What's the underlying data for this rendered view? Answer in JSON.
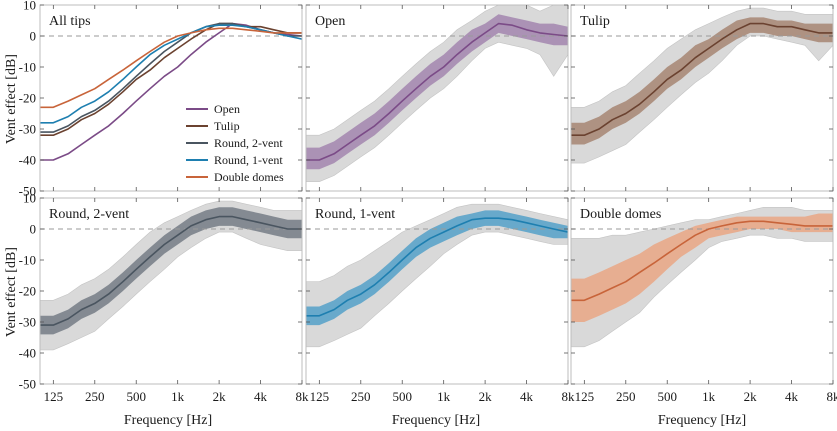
{
  "chart_data": {
    "type": "line",
    "grid": false,
    "legend_location": "lower-right",
    "xlabel": "Frequency [Hz]",
    "ylabel": "Vent effect [dB]",
    "x_scale": "log",
    "xlim": [
      100,
      8000
    ],
    "ylim": [
      -50,
      10
    ],
    "x_ticks": [
      125,
      250,
      500,
      1000,
      2000,
      4000,
      8000
    ],
    "x_tick_labels": [
      "125",
      "250",
      "500",
      "1k",
      "2k",
      "4k",
      "8k"
    ],
    "y_ticks": [
      10,
      0,
      -10,
      -20,
      -30,
      -40,
      -50
    ],
    "y_tick_labels": [
      "10",
      "0",
      "-10",
      "-20",
      "-30",
      "-40",
      "-50"
    ],
    "reference_line": {
      "y": 0,
      "style": "dashed"
    },
    "frequency": [
      100,
      125,
      160,
      200,
      250,
      315,
      400,
      500,
      630,
      800,
      1000,
      1250,
      1600,
      2000,
      2500,
      3150,
      4000,
      5000,
      6300,
      8000
    ],
    "series_colors": {
      "Open": "#7b4b87",
      "Tulip": "#6b4230",
      "Round, 2-vent": "#4a5560",
      "Round, 1-vent": "#1e7fb0",
      "Double domes": "#c8643a"
    },
    "band_colors": {
      "Open": "#a58ab0",
      "Tulip": "#a88a78",
      "Round, 2-vent": "#7a818a",
      "Round, 1-vent": "#5ba3c9",
      "Double domes": "#e8a888",
      "range": "#d9d9d9"
    },
    "series": [
      {
        "name": "Open",
        "values": [
          -40,
          -40,
          -38,
          -35,
          -32,
          -29,
          -25,
          -21,
          -17,
          -13,
          -10,
          -6,
          -2,
          1,
          4,
          3.5,
          2,
          1,
          0.5,
          0
        ],
        "inner_low": [
          -43,
          -43,
          -41,
          -38,
          -35,
          -32,
          -28,
          -24,
          -20,
          -16,
          -13,
          -9,
          -5,
          -2,
          1,
          0,
          -1,
          -2,
          -3,
          -3
        ],
        "inner_high": [
          -36,
          -36,
          -34,
          -31,
          -28,
          -25,
          -21,
          -17,
          -13,
          -9,
          -6,
          -2,
          2,
          4,
          7,
          6,
          5,
          4,
          4,
          3
        ],
        "range_low": [
          -47,
          -47,
          -45,
          -42,
          -39,
          -36,
          -32,
          -28,
          -24,
          -20,
          -17,
          -13,
          -8,
          -4,
          -2,
          -3,
          -4,
          -6,
          -13,
          -6
        ],
        "range_high": [
          -32,
          -32,
          -30,
          -27,
          -24,
          -21,
          -17,
          -13,
          -9,
          -5,
          -2,
          2,
          5,
          8,
          10,
          10,
          10,
          8,
          10,
          10
        ]
      },
      {
        "name": "Tulip",
        "values": [
          -32,
          -32,
          -30,
          -27,
          -25,
          -22,
          -18,
          -14,
          -11,
          -7,
          -4,
          -1,
          2,
          4,
          4,
          3,
          3,
          2,
          1,
          1
        ],
        "inner_low": [
          -35,
          -35,
          -33,
          -30,
          -28,
          -25,
          -21,
          -17,
          -14,
          -10,
          -7,
          -4,
          -1,
          1,
          1,
          0,
          0,
          -1,
          -2,
          -2
        ],
        "inner_high": [
          -28,
          -28,
          -26,
          -23,
          -21,
          -18,
          -14,
          -10,
          -7,
          -3,
          -1,
          2,
          5,
          6,
          6,
          5,
          5,
          4,
          4,
          4
        ],
        "range_low": [
          -41,
          -41,
          -39,
          -37,
          -35,
          -31,
          -27,
          -23,
          -19,
          -15,
          -12,
          -8,
          -3,
          0,
          0,
          -1,
          -2,
          -3,
          -8,
          -3
        ],
        "range_high": [
          -23,
          -23,
          -21,
          -18,
          -16,
          -12,
          -8,
          -4,
          -1,
          2,
          4,
          6,
          8,
          9,
          9,
          8,
          8,
          7,
          7,
          7
        ]
      },
      {
        "name": "Round, 2-vent",
        "values": [
          -31,
          -31,
          -29,
          -26,
          -24,
          -21,
          -17,
          -13,
          -9,
          -5,
          -2,
          1,
          3,
          4,
          4,
          3,
          2,
          1,
          0,
          0
        ],
        "inner_low": [
          -34,
          -34,
          -32,
          -29,
          -27,
          -24,
          -20,
          -16,
          -12,
          -8,
          -5,
          -2,
          0,
          1,
          1,
          0,
          -1,
          -2,
          -3,
          -3
        ],
        "inner_high": [
          -28,
          -28,
          -26,
          -23,
          -21,
          -18,
          -14,
          -10,
          -6,
          -2,
          1,
          4,
          6,
          7,
          7,
          6,
          5,
          4,
          3,
          3
        ],
        "range_low": [
          -39,
          -39,
          -37,
          -35,
          -33,
          -29,
          -25,
          -21,
          -17,
          -13,
          -9,
          -6,
          -3,
          -1,
          -1,
          -3,
          -5,
          -6,
          -7,
          -7
        ],
        "range_high": [
          -23,
          -23,
          -21,
          -18,
          -16,
          -13,
          -9,
          -5,
          -1,
          2,
          4,
          6,
          8,
          9,
          9,
          8,
          7,
          6,
          6,
          6
        ]
      },
      {
        "name": "Round, 1-vent",
        "values": [
          -28,
          -28,
          -26,
          -23,
          -21,
          -18,
          -14,
          -10,
          -6,
          -3,
          -1,
          1,
          3,
          3.5,
          3.5,
          3,
          2,
          1,
          0,
          -1
        ],
        "inner_low": [
          -31,
          -31,
          -29,
          -26,
          -24,
          -21,
          -17,
          -13,
          -9,
          -6,
          -4,
          -2,
          0,
          1,
          1,
          0,
          -1,
          -2,
          -3,
          -3
        ],
        "inner_high": [
          -25,
          -25,
          -23,
          -20,
          -18,
          -15,
          -11,
          -7,
          -3,
          0,
          2,
          4,
          5,
          6,
          6,
          5,
          4,
          3,
          2,
          1
        ],
        "range_low": [
          -38,
          -38,
          -36,
          -34,
          -32,
          -28,
          -24,
          -20,
          -16,
          -12,
          -8,
          -5,
          -2,
          -1,
          -1,
          -2,
          -3,
          -4,
          -5,
          -5
        ],
        "range_high": [
          -17,
          -17,
          -15,
          -12,
          -10,
          -7,
          -4,
          -1,
          1,
          3,
          5,
          7,
          8,
          8,
          8,
          7,
          6,
          5,
          4,
          3
        ]
      },
      {
        "name": "Double domes",
        "values": [
          -23,
          -23,
          -21,
          -19,
          -17,
          -14,
          -11,
          -8,
          -5,
          -2,
          0,
          1,
          2,
          2.5,
          2.5,
          2,
          1.5,
          1,
          1,
          1
        ],
        "inner_low": [
          -30,
          -30,
          -28,
          -26,
          -24,
          -21,
          -17,
          -13,
          -9,
          -6,
          -3,
          -2,
          -1,
          0,
          0,
          0,
          -1,
          -1,
          -1,
          -1
        ],
        "inner_high": [
          -16,
          -16,
          -14,
          -12,
          -10,
          -8,
          -5,
          -3,
          -1,
          1,
          2,
          3,
          4,
          4,
          4,
          4,
          4,
          4,
          5,
          5
        ],
        "range_low": [
          -38,
          -38,
          -36,
          -33,
          -30,
          -27,
          -22,
          -18,
          -14,
          -10,
          -6,
          -4,
          -3,
          -2,
          -2,
          -3,
          -3,
          -4,
          -4,
          -4
        ],
        "range_high": [
          -3,
          -3,
          -3,
          -2,
          -2,
          -1,
          0,
          1,
          2,
          3,
          3,
          4,
          5,
          6,
          7,
          7,
          7,
          6,
          6,
          6
        ]
      }
    ],
    "panels": [
      {
        "title": "All tips",
        "series": [
          "Open",
          "Tulip",
          "Round, 2-vent",
          "Round, 1-vent",
          "Double domes"
        ],
        "shaded": false,
        "legend": true
      },
      {
        "title": "Open",
        "series": [
          "Open"
        ],
        "shaded": true,
        "legend": false
      },
      {
        "title": "Tulip",
        "series": [
          "Tulip"
        ],
        "shaded": true,
        "legend": false
      },
      {
        "title": "Round, 2-vent",
        "series": [
          "Round, 2-vent"
        ],
        "shaded": true,
        "legend": false
      },
      {
        "title": "Round, 1-vent",
        "series": [
          "Round, 1-vent"
        ],
        "shaded": true,
        "legend": false
      },
      {
        "title": "Double domes",
        "series": [
          "Double domes"
        ],
        "shaded": true,
        "legend": false
      }
    ]
  }
}
